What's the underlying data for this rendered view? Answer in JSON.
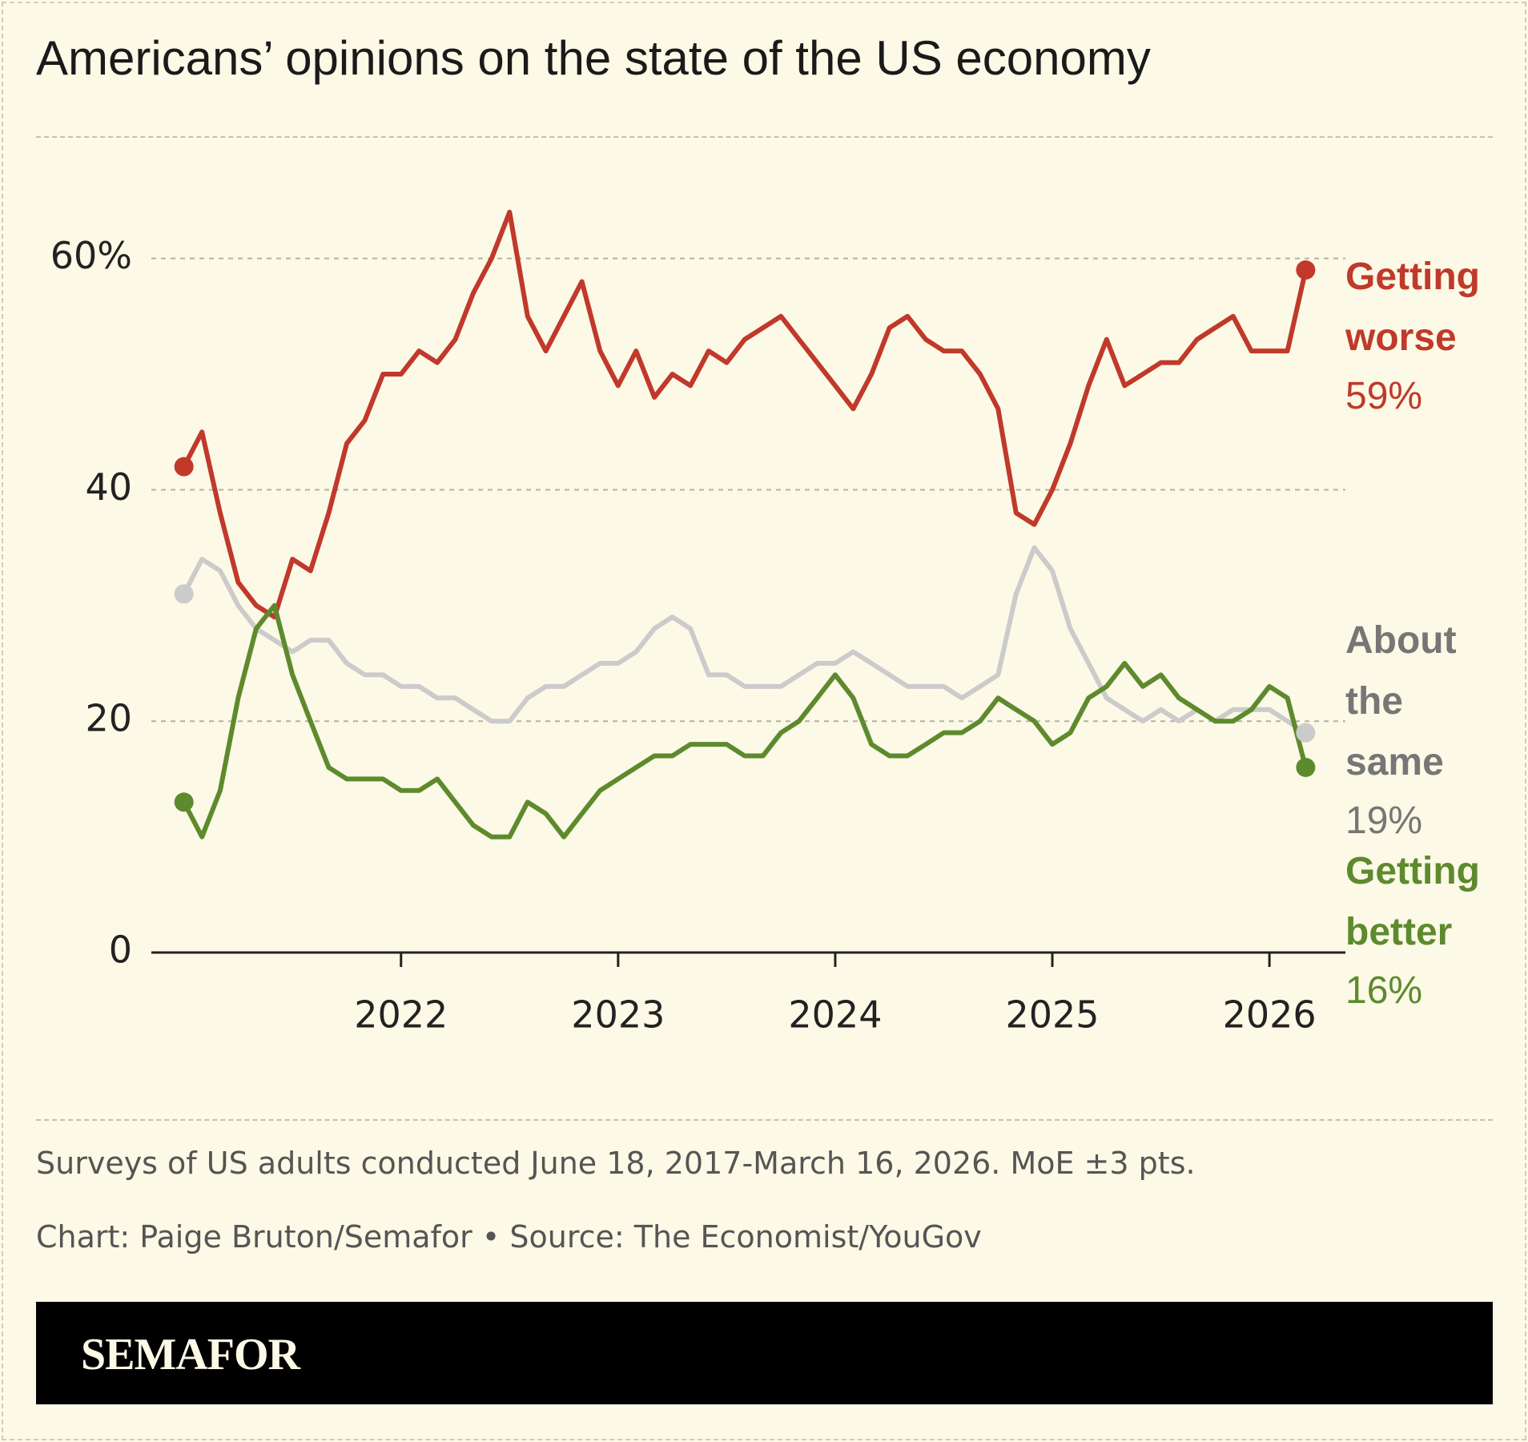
{
  "chart_data": {
    "type": "line",
    "title": "Americans’ opinions on the state of the US economy",
    "caption": "Surveys of US adults conducted June 18, 2017-March 16, 2026. MoE ±3 pts.",
    "credit": "Chart: Paige Bruton/Semafor • Source: The Economist/YouGov",
    "brand": "SEMAFOR",
    "x": [
      2021,
      2021.083,
      2021.167,
      2021.25,
      2021.333,
      2021.417,
      2021.5,
      2021.583,
      2021.667,
      2021.75,
      2021.833,
      2021.917,
      2022,
      2022.083,
      2022.167,
      2022.25,
      2022.333,
      2022.417,
      2022.5,
      2022.583,
      2022.667,
      2022.75,
      2022.833,
      2022.917,
      2023,
      2023.083,
      2023.167,
      2023.25,
      2023.333,
      2023.417,
      2023.5,
      2023.583,
      2023.667,
      2023.75,
      2023.833,
      2023.917,
      2024,
      2024.083,
      2024.167,
      2024.25,
      2024.333,
      2024.417,
      2024.5,
      2024.583,
      2024.667,
      2024.75,
      2024.833,
      2024.917,
      2025,
      2025.083,
      2025.167,
      2025.25,
      2025.333,
      2025.417,
      2025.5,
      2025.583,
      2025.667,
      2025.75,
      2025.833,
      2025.917,
      2026,
      2026.083,
      2026.167
    ],
    "series": [
      {
        "name": "Getting worse",
        "color": "#c0392b",
        "label_color": "#c0392b",
        "values": [
          42,
          45,
          38,
          32,
          30,
          29,
          34,
          33,
          38,
          44,
          46,
          50,
          50,
          52,
          51,
          53,
          57,
          60,
          64,
          55,
          52,
          55,
          58,
          52,
          49,
          52,
          48,
          50,
          49,
          52,
          51,
          53,
          54,
          55,
          53,
          51,
          49,
          47,
          50,
          54,
          55,
          53,
          52,
          52,
          50,
          47,
          38,
          37,
          40,
          44,
          49,
          53,
          49,
          50,
          51,
          51,
          53,
          54,
          55,
          52,
          52,
          52,
          59
        ],
        "value_labels": [
          null,
          null,
          null,
          null,
          null,
          null,
          null,
          null,
          null,
          null,
          null,
          null,
          null,
          null,
          null,
          null,
          null,
          null,
          null,
          null,
          null,
          null,
          null,
          null,
          null,
          null,
          null,
          null,
          null,
          null,
          null,
          null,
          null,
          null,
          null,
          null,
          null,
          null,
          null,
          null,
          null,
          null,
          null,
          null,
          null,
          null,
          null,
          null,
          null,
          null,
          null,
          null,
          null,
          null,
          null,
          null,
          null,
          null,
          null,
          null,
          null,
          null,
          "59%"
        ]
      },
      {
        "name": "About the same",
        "color": "#cbcbcb",
        "label_color": "#767676",
        "values": [
          31,
          34,
          33,
          30,
          28,
          27,
          26,
          27,
          27,
          25,
          24,
          24,
          23,
          23,
          22,
          22,
          21,
          20,
          20,
          22,
          23,
          23,
          24,
          25,
          25,
          26,
          28,
          29,
          28,
          24,
          24,
          23,
          23,
          23,
          24,
          25,
          25,
          26,
          25,
          24,
          23,
          23,
          23,
          22,
          23,
          24,
          31,
          35,
          33,
          28,
          25,
          22,
          21,
          20,
          21,
          20,
          21,
          20,
          21,
          21,
          21,
          20,
          19
        ],
        "value_labels": [
          null,
          null,
          null,
          null,
          null,
          null,
          null,
          null,
          null,
          null,
          null,
          null,
          null,
          null,
          null,
          null,
          null,
          null,
          null,
          null,
          null,
          null,
          null,
          null,
          null,
          null,
          null,
          null,
          null,
          null,
          null,
          null,
          null,
          null,
          null,
          null,
          null,
          null,
          null,
          null,
          null,
          null,
          null,
          null,
          null,
          null,
          null,
          null,
          null,
          null,
          null,
          null,
          null,
          null,
          null,
          null,
          null,
          null,
          null,
          null,
          null,
          null,
          "19%"
        ]
      },
      {
        "name": "Getting better",
        "color": "#5e8a2e",
        "label_color": "#5e8a2e",
        "values": [
          13,
          10,
          14,
          22,
          28,
          30,
          24,
          20,
          16,
          15,
          15,
          15,
          14,
          14,
          15,
          13,
          11,
          10,
          10,
          13,
          12,
          10,
          12,
          14,
          15,
          16,
          17,
          17,
          18,
          18,
          18,
          17,
          17,
          19,
          20,
          22,
          24,
          22,
          18,
          17,
          17,
          18,
          19,
          19,
          20,
          22,
          21,
          20,
          18,
          19,
          22,
          23,
          25,
          23,
          24,
          22,
          21,
          20,
          20,
          21,
          23,
          22,
          16
        ],
        "value_labels": [
          null,
          null,
          null,
          null,
          null,
          null,
          null,
          null,
          null,
          null,
          null,
          null,
          null,
          null,
          null,
          null,
          null,
          null,
          null,
          null,
          null,
          null,
          null,
          null,
          null,
          null,
          null,
          null,
          null,
          null,
          null,
          null,
          null,
          null,
          null,
          null,
          null,
          null,
          null,
          null,
          null,
          null,
          null,
          null,
          null,
          null,
          null,
          null,
          null,
          null,
          null,
          null,
          null,
          null,
          null,
          null,
          null,
          null,
          null,
          null,
          null,
          null,
          "16%"
        ]
      }
    ],
    "xlim": [
      2020.85,
      2026.35
    ],
    "xticks": [
      2022,
      2023,
      2024,
      2025,
      2026
    ],
    "ylim": [
      0,
      70
    ],
    "yticks": [
      0,
      20,
      40,
      {
        "value": 60,
        "label": "60%"
      }
    ],
    "grid": true
  }
}
